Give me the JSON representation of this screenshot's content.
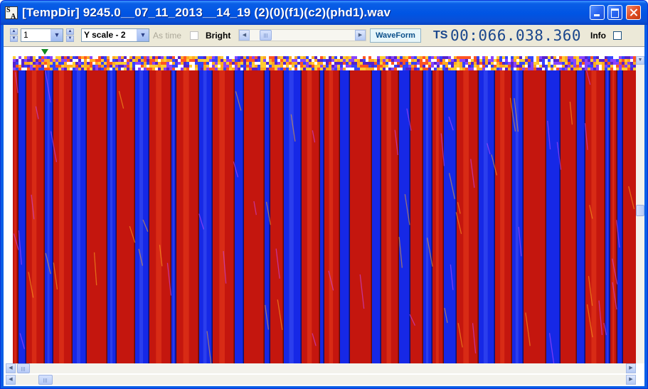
{
  "window": {
    "app_icon_text": [
      "S",
      "A"
    ],
    "title": "[TempDir] 9245.0__07_11_2013__14_19 (2)(0)(f1)(c2)(phd1).wav"
  },
  "toolbar": {
    "channel_value": "1",
    "yscale_value": "Y scale - 2",
    "as_time_label": "As time",
    "bright_label": "Bright",
    "bright_checked": false,
    "waveform_label": "WaveForm",
    "ts_label": "TS",
    "ts_value": "00:066.038.360",
    "info_label": "Info",
    "info_checked": false
  },
  "colors": {
    "spectro_red": "#c4160e",
    "spectro_blue": "#1628e6",
    "marker": "#0e8a1e",
    "ts_text": "#19468c"
  },
  "icons": [
    "app-icon",
    "minimize-icon",
    "maximize-icon",
    "close-icon",
    "chevron-down-icon",
    "spin-up-icon",
    "spin-down-icon",
    "arrow-left-icon",
    "arrow-right-icon",
    "arrow-up-icon",
    "arrow-down-icon",
    "position-marker-icon"
  ]
}
